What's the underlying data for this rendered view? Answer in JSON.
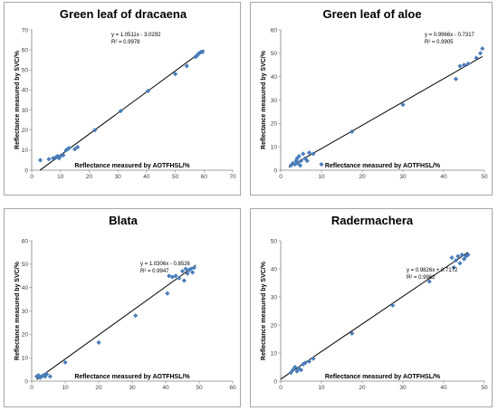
{
  "chart_data": [
    {
      "type": "scatter",
      "title": "Green leaf of dracaena",
      "xlabel": "Reflectance measured by AOTFHSL/%",
      "ylabel": "Reflectance measured by SVC/%",
      "xlim": [
        0,
        70
      ],
      "ylim": [
        0,
        70
      ],
      "xticks": [
        0,
        10,
        20,
        30,
        40,
        50,
        60,
        70
      ],
      "yticks": [
        0,
        10,
        20,
        30,
        40,
        50,
        60,
        70
      ],
      "trendline": {
        "slope": 1.0511,
        "intercept": -3.0292,
        "x_range": [
          2.9,
          60
        ]
      },
      "equation": "y = 1.0511x - 3.0292",
      "r2": "R² = 0.9978",
      "grid": false,
      "legend": "none",
      "marker_color": "#4a7ebb",
      "line_color": "#000000",
      "x": [
        3,
        6,
        7.5,
        8.5,
        9,
        9.5,
        10,
        11,
        12,
        12.5,
        13,
        15,
        16,
        22,
        31,
        40.5,
        50,
        54,
        57,
        57.5,
        58,
        58.5,
        59,
        59.5
      ],
      "y": [
        5,
        5.5,
        6,
        6.5,
        7,
        6,
        7,
        7.5,
        10,
        10.5,
        11,
        10.5,
        11.5,
        20,
        29.5,
        39.5,
        48,
        52,
        56.5,
        57,
        58,
        58.5,
        59,
        59
      ]
    },
    {
      "type": "scatter",
      "title": "Green leaf of aloe",
      "xlabel": "Reflectance measured by AOTFHSL/%",
      "ylabel": "Reflectance measured by SVC/%",
      "xlim": [
        0,
        50
      ],
      "ylim": [
        0,
        60
      ],
      "xticks": [
        0,
        10,
        20,
        30,
        40,
        50
      ],
      "yticks": [
        0,
        10,
        20,
        30,
        40,
        50,
        60
      ],
      "trendline": {
        "slope": 0.9966,
        "intercept": -0.7317,
        "x_range": [
          2,
          49.5
        ]
      },
      "equation": "y = 0.9966x - 0.7317",
      "r2": "R² = 0.9905",
      "grid": false,
      "legend": "none",
      "marker_color": "#4a7ebb",
      "line_color": "#000000",
      "x": [
        2.5,
        3,
        3.5,
        3.8,
        4,
        4.2,
        4.5,
        4.8,
        5,
        5.5,
        6,
        6.5,
        7,
        8,
        10,
        17.5,
        30,
        43,
        44,
        45,
        46,
        48,
        49,
        49.5
      ],
      "y": [
        2,
        3,
        2.5,
        4,
        5,
        3,
        6,
        2,
        4,
        7,
        5,
        4,
        7.5,
        7,
        2.5,
        16.5,
        28,
        39,
        44.5,
        45,
        45.5,
        48,
        50,
        52
      ]
    },
    {
      "type": "scatter",
      "title": "Blata",
      "xlabel": "Reflectance measured by AOTFHSL/%",
      "ylabel": "Reflectance measured by SVC/%",
      "xlim": [
        0,
        60
      ],
      "ylim": [
        0,
        60
      ],
      "xticks": [
        0,
        10,
        20,
        30,
        40,
        50,
        60
      ],
      "yticks": [
        0,
        10,
        20,
        30,
        40,
        50,
        60
      ],
      "trendline": {
        "slope": 1.0306,
        "intercept": -0.8526,
        "x_range": [
          1.5,
          49
        ]
      },
      "equation": "y = 1.0306x - 0.8526",
      "r2": "R² = 0.9947",
      "grid": false,
      "legend": "none",
      "marker_color": "#4a7ebb",
      "line_color": "#000000",
      "x": [
        1.5,
        2,
        2.5,
        3,
        3.5,
        4,
        4.5,
        5.5,
        10,
        20,
        31,
        40.5,
        41,
        42,
        43,
        44,
        45,
        45.5,
        46,
        46.5,
        47,
        47.5,
        48,
        48.5
      ],
      "y": [
        2,
        2.5,
        1.5,
        2,
        2.5,
        2,
        3,
        2,
        8,
        16.5,
        28,
        37.5,
        45,
        44.5,
        45,
        44,
        47,
        43,
        48,
        46,
        47.5,
        48,
        46.5,
        48.5
      ]
    },
    {
      "type": "scatter",
      "title": "Radermachera",
      "xlabel": "Reflectance measured by AOTFHSL/%",
      "ylabel": "Reflectance measured by SVC/%",
      "xlim": [
        0,
        50
      ],
      "ylim": [
        0,
        50
      ],
      "xticks": [
        0,
        10,
        20,
        30,
        40,
        50
      ],
      "yticks": [
        0,
        10,
        20,
        30,
        40,
        50
      ],
      "trendline": {
        "slope": 0.9826,
        "intercept": 0.7172,
        "x_range": [
          0,
          46
        ]
      },
      "equation": "y = 0.9826x + 0.7172",
      "r2": "R² = 0.9962",
      "grid": false,
      "legend": "none",
      "marker_color": "#4a7ebb",
      "line_color": "#000000",
      "x": [
        2.5,
        3,
        3.5,
        4,
        4.5,
        5,
        5.5,
        6,
        7,
        8,
        17.5,
        27.5,
        36.5,
        42,
        42.5,
        43,
        43.5,
        44,
        44.5,
        45,
        45.5,
        46
      ],
      "y": [
        3,
        4,
        5,
        3.5,
        4.5,
        4,
        6,
        6.5,
        7,
        8,
        17,
        27,
        35.5,
        44,
        40.5,
        43,
        44.5,
        42,
        45,
        43.5,
        44.5,
        45
      ]
    }
  ]
}
